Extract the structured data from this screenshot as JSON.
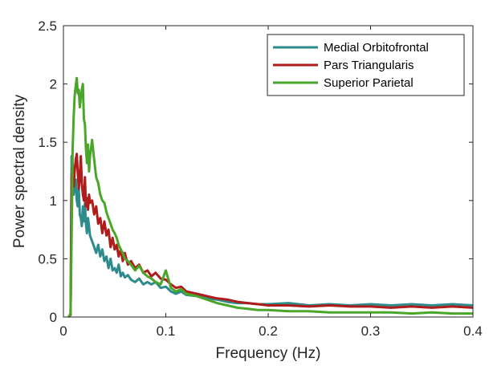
{
  "chart_data": {
    "type": "line",
    "title": "",
    "xlabel": "Frequency (Hz)",
    "ylabel": "Power spectral density",
    "xlim": [
      0,
      0.4
    ],
    "ylim": [
      0,
      2.5
    ],
    "xticks": [
      0,
      0.1,
      0.2,
      0.3,
      0.4
    ],
    "xtick_labels": [
      "0",
      "0.1",
      "0.2",
      "0.3",
      "0.4"
    ],
    "yticks": [
      0,
      0.5,
      1,
      1.5,
      2,
      2.5
    ],
    "ytick_labels": [
      "0",
      "0.5",
      "1",
      "1.5",
      "2",
      "2.5"
    ],
    "grid": false,
    "legend_position": "top-right",
    "series": [
      {
        "name": "Medial Orbitofrontal",
        "color": "#2e8b8b",
        "x": [
          0.005,
          0.007,
          0.008,
          0.009,
          0.01,
          0.011,
          0.012,
          0.013,
          0.014,
          0.015,
          0.016,
          0.017,
          0.018,
          0.019,
          0.02,
          0.021,
          0.022,
          0.023,
          0.024,
          0.025,
          0.026,
          0.028,
          0.03,
          0.032,
          0.034,
          0.036,
          0.038,
          0.04,
          0.042,
          0.044,
          0.046,
          0.048,
          0.05,
          0.052,
          0.054,
          0.056,
          0.058,
          0.06,
          0.063,
          0.066,
          0.07,
          0.074,
          0.078,
          0.082,
          0.086,
          0.09,
          0.095,
          0.1,
          0.105,
          0.11,
          0.115,
          0.12,
          0.13,
          0.14,
          0.15,
          0.16,
          0.17,
          0.18,
          0.19,
          0.2,
          0.22,
          0.24,
          0.26,
          0.28,
          0.3,
          0.32,
          0.34,
          0.36,
          0.38,
          0.4
        ],
        "y": [
          0.0,
          0.02,
          1.38,
          1.3,
          1.05,
          1.15,
          1.18,
          1.0,
          0.95,
          1.1,
          0.88,
          0.85,
          0.78,
          0.95,
          0.82,
          0.98,
          0.8,
          0.72,
          0.85,
          0.78,
          0.7,
          0.65,
          0.6,
          0.55,
          0.62,
          0.52,
          0.58,
          0.48,
          0.52,
          0.42,
          0.5,
          0.4,
          0.42,
          0.38,
          0.45,
          0.35,
          0.38,
          0.34,
          0.36,
          0.32,
          0.3,
          0.33,
          0.28,
          0.3,
          0.28,
          0.3,
          0.25,
          0.26,
          0.22,
          0.2,
          0.22,
          0.19,
          0.18,
          0.16,
          0.15,
          0.13,
          0.12,
          0.12,
          0.11,
          0.11,
          0.12,
          0.1,
          0.11,
          0.1,
          0.11,
          0.1,
          0.11,
          0.1,
          0.11,
          0.1
        ]
      },
      {
        "name": "Pars Triangularis",
        "color": "#b01c1c",
        "x": [
          0.005,
          0.007,
          0.008,
          0.009,
          0.01,
          0.011,
          0.012,
          0.013,
          0.014,
          0.015,
          0.016,
          0.017,
          0.018,
          0.019,
          0.02,
          0.021,
          0.022,
          0.023,
          0.024,
          0.025,
          0.026,
          0.028,
          0.03,
          0.032,
          0.034,
          0.036,
          0.038,
          0.04,
          0.042,
          0.044,
          0.046,
          0.048,
          0.05,
          0.052,
          0.054,
          0.056,
          0.058,
          0.06,
          0.063,
          0.066,
          0.07,
          0.074,
          0.078,
          0.082,
          0.086,
          0.09,
          0.095,
          0.1,
          0.105,
          0.11,
          0.115,
          0.12,
          0.13,
          0.14,
          0.15,
          0.16,
          0.17,
          0.18,
          0.19,
          0.2,
          0.22,
          0.24,
          0.26,
          0.28,
          0.3,
          0.32,
          0.34,
          0.36,
          0.38,
          0.4
        ],
        "y": [
          0.0,
          0.02,
          1.2,
          1.3,
          1.12,
          1.25,
          1.35,
          1.4,
          1.25,
          1.1,
          1.2,
          1.38,
          1.15,
          1.05,
          1.0,
          1.2,
          0.95,
          1.02,
          0.92,
          1.05,
          0.98,
          1.0,
          0.88,
          0.95,
          0.8,
          0.85,
          0.72,
          0.82,
          0.7,
          0.75,
          0.6,
          0.68,
          0.58,
          0.62,
          0.52,
          0.58,
          0.48,
          0.55,
          0.45,
          0.48,
          0.42,
          0.45,
          0.38,
          0.4,
          0.35,
          0.38,
          0.33,
          0.32,
          0.28,
          0.25,
          0.26,
          0.22,
          0.2,
          0.18,
          0.16,
          0.15,
          0.13,
          0.12,
          0.11,
          0.1,
          0.1,
          0.09,
          0.1,
          0.09,
          0.09,
          0.08,
          0.09,
          0.08,
          0.09,
          0.08
        ]
      },
      {
        "name": "Superior Parietal",
        "color": "#4aa628",
        "x": [
          0.005,
          0.007,
          0.008,
          0.009,
          0.01,
          0.011,
          0.012,
          0.013,
          0.014,
          0.015,
          0.016,
          0.017,
          0.018,
          0.019,
          0.02,
          0.021,
          0.022,
          0.023,
          0.024,
          0.025,
          0.026,
          0.028,
          0.03,
          0.032,
          0.034,
          0.036,
          0.038,
          0.04,
          0.042,
          0.044,
          0.046,
          0.048,
          0.05,
          0.052,
          0.054,
          0.056,
          0.058,
          0.06,
          0.063,
          0.066,
          0.07,
          0.074,
          0.078,
          0.082,
          0.086,
          0.09,
          0.095,
          0.1,
          0.105,
          0.11,
          0.115,
          0.12,
          0.13,
          0.14,
          0.15,
          0.16,
          0.17,
          0.18,
          0.19,
          0.2,
          0.22,
          0.24,
          0.26,
          0.28,
          0.3,
          0.32,
          0.34,
          0.36,
          0.38,
          0.4
        ],
        "y": [
          0.0,
          0.03,
          0.7,
          1.45,
          1.72,
          1.9,
          1.98,
          2.05,
          1.92,
          1.95,
          1.8,
          1.88,
          1.95,
          2.0,
          1.7,
          1.65,
          1.45,
          1.32,
          1.48,
          1.25,
          1.38,
          1.52,
          1.35,
          1.2,
          1.15,
          1.05,
          1.0,
          0.98,
          0.9,
          0.85,
          0.8,
          0.75,
          0.72,
          0.68,
          0.62,
          0.58,
          0.55,
          0.5,
          0.48,
          0.45,
          0.4,
          0.44,
          0.38,
          0.35,
          0.33,
          0.3,
          0.28,
          0.4,
          0.25,
          0.22,
          0.24,
          0.2,
          0.18,
          0.15,
          0.12,
          0.1,
          0.08,
          0.07,
          0.06,
          0.06,
          0.05,
          0.05,
          0.04,
          0.04,
          0.04,
          0.04,
          0.03,
          0.04,
          0.03,
          0.03
        ]
      }
    ]
  }
}
